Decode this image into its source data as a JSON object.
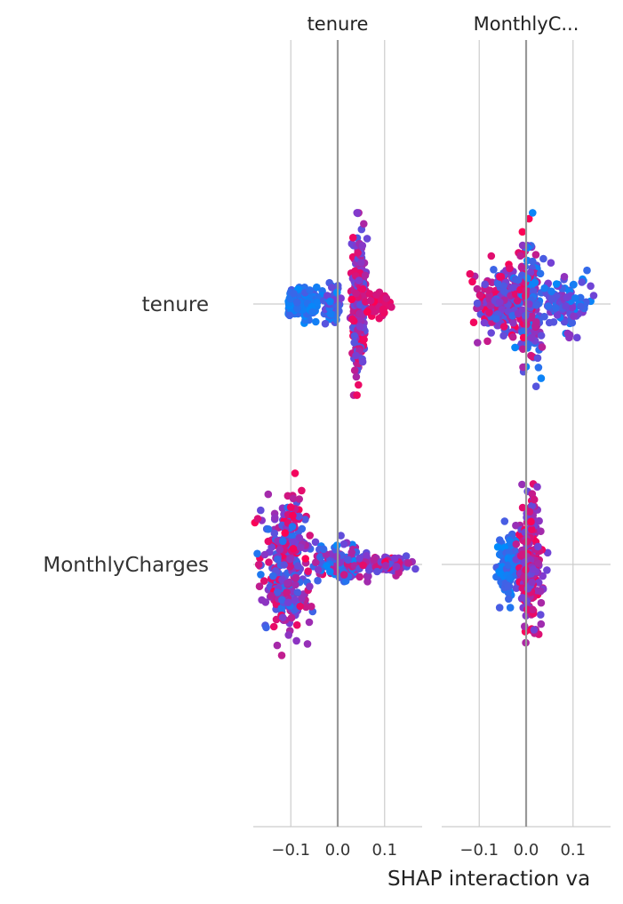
{
  "chart_data": {
    "type": "scatter",
    "subtype": "beeswarm-interaction-grid",
    "xlabel": "SHAP interaction va",
    "panels": [
      {
        "title": "tenure",
        "xlim": [
          -0.18,
          0.18
        ]
      },
      {
        "title": "MonthlyC...",
        "xlim": [
          -0.18,
          0.18
        ]
      }
    ],
    "features": [
      "tenure",
      "MonthlyCharges"
    ],
    "xticks": [
      -0.1,
      0.0,
      0.1
    ],
    "xtick_labels": [
      "−0.1",
      "0.0",
      "0.1"
    ],
    "color_low": "#008bfb",
    "color_high": "#ff0052",
    "colors": {
      "grid": "#cccccc",
      "zero_line": "#999999",
      "text": "#333333"
    },
    "cells": [
      {
        "panel": 0,
        "feature": "tenure",
        "x_range": [
          -0.105,
          0.115
        ],
        "y_spread": [
          -0.9,
          0.9
        ],
        "clusters": [
          {
            "x": -0.08,
            "spread": 0.035,
            "n": 220,
            "amp": 0.2,
            "cr": [
              0.0,
              0.3
            ]
          },
          {
            "x": -0.01,
            "spread": 0.015,
            "n": 80,
            "amp": 0.25,
            "cr": [
              0.0,
              0.5
            ]
          },
          {
            "x": 0.045,
            "spread": 0.012,
            "n": 300,
            "amp": 0.95,
            "cr": [
              0.3,
              1.0
            ]
          },
          {
            "x": 0.085,
            "spread": 0.02,
            "n": 60,
            "amp": 0.15,
            "cr": [
              0.8,
              1.0
            ]
          }
        ]
      },
      {
        "panel": 1,
        "feature": "tenure",
        "x_range": [
          -0.12,
          0.16
        ],
        "y_spread": [
          -0.9,
          0.9
        ],
        "clusters": [
          {
            "x": -0.05,
            "spread": 0.05,
            "n": 200,
            "amp": 0.5,
            "cr": [
              0.2,
              1.0
            ]
          },
          {
            "x": 0.005,
            "spread": 0.025,
            "n": 200,
            "amp": 0.95,
            "cr": [
              0.0,
              1.0
            ]
          },
          {
            "x": 0.08,
            "spread": 0.04,
            "n": 120,
            "amp": 0.35,
            "cr": [
              0.0,
              0.6
            ]
          }
        ]
      },
      {
        "panel": 0,
        "feature": "MonthlyCharges",
        "x_range": [
          -0.18,
          0.18
        ],
        "y_spread": [
          -0.9,
          0.9
        ],
        "clusters": [
          {
            "x": -0.105,
            "spread": 0.045,
            "n": 330,
            "amp": 0.95,
            "cr": [
              0.1,
              1.0
            ]
          },
          {
            "x": 0.005,
            "spread": 0.035,
            "n": 120,
            "amp": 0.3,
            "cr": [
              0.0,
              0.8
            ]
          },
          {
            "x": 0.1,
            "spread": 0.05,
            "n": 120,
            "amp": 0.12,
            "cr": [
              0.3,
              1.0
            ]
          }
        ]
      },
      {
        "panel": 1,
        "feature": "MonthlyCharges",
        "x_range": [
          -0.08,
          0.06
        ],
        "y_spread": [
          -0.9,
          0.9
        ],
        "clusters": [
          {
            "x": -0.04,
            "spread": 0.018,
            "n": 140,
            "amp": 0.45,
            "cr": [
              0.0,
              0.3
            ]
          },
          {
            "x": 0.008,
            "spread": 0.02,
            "n": 260,
            "amp": 0.95,
            "cr": [
              0.4,
              1.0
            ]
          }
        ]
      }
    ]
  }
}
